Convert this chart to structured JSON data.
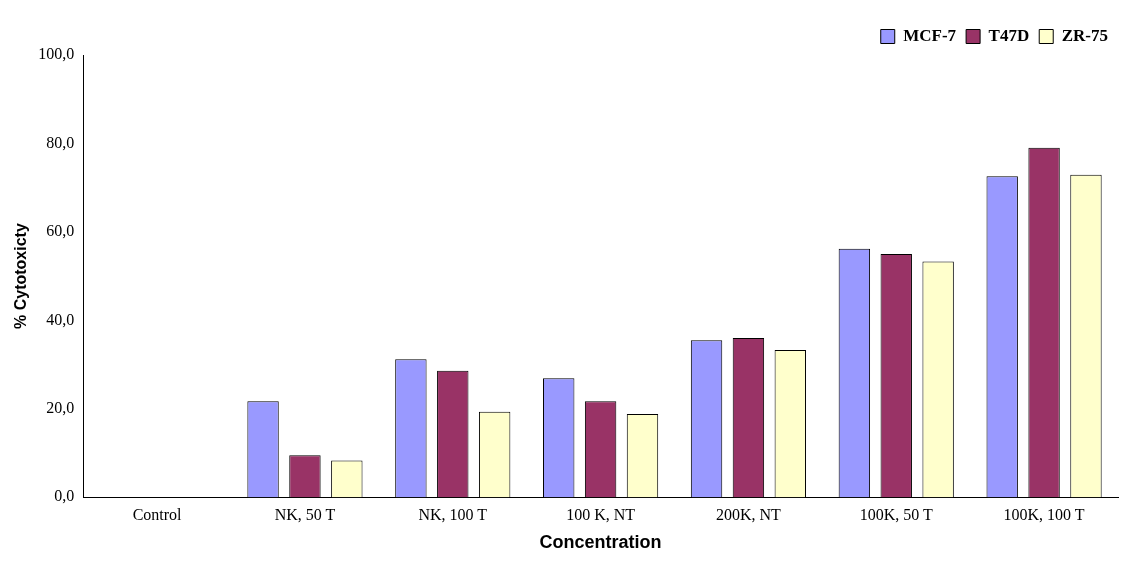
{
  "chart_data": {
    "type": "bar",
    "xlabel": "Concentration",
    "ylabel": "% Cytotoxicty",
    "categories": [
      "Control",
      "NK, 50 T",
      "NK, 100 T",
      "100 K, NT",
      "200K, NT",
      "100K, 50 T",
      "100K, 100 T"
    ],
    "series": [
      {
        "name": "MCF-7",
        "color": "#9999ff",
        "values": [
          0,
          21.7,
          31.2,
          26.9,
          35.5,
          56.2,
          72.6
        ]
      },
      {
        "name": "T47D",
        "color": "#993366",
        "values": [
          0,
          9.5,
          28.6,
          21.7,
          36,
          55,
          79
        ]
      },
      {
        "name": "ZR-75",
        "color": "#ffffcc",
        "values": [
          0,
          8.3,
          19.3,
          18.8,
          33.3,
          53.3,
          72.9
        ]
      }
    ],
    "ylim": [
      0,
      100
    ],
    "yticks": [
      {
        "value": 0,
        "label": "0,0"
      },
      {
        "value": 20,
        "label": "20,0"
      },
      {
        "value": 40,
        "label": "40,0"
      },
      {
        "value": 60,
        "label": "60,0"
      },
      {
        "value": 80,
        "label": "80,0"
      },
      {
        "value": 100,
        "label": "100,0"
      }
    ],
    "grid": false,
    "legend": "top right"
  }
}
